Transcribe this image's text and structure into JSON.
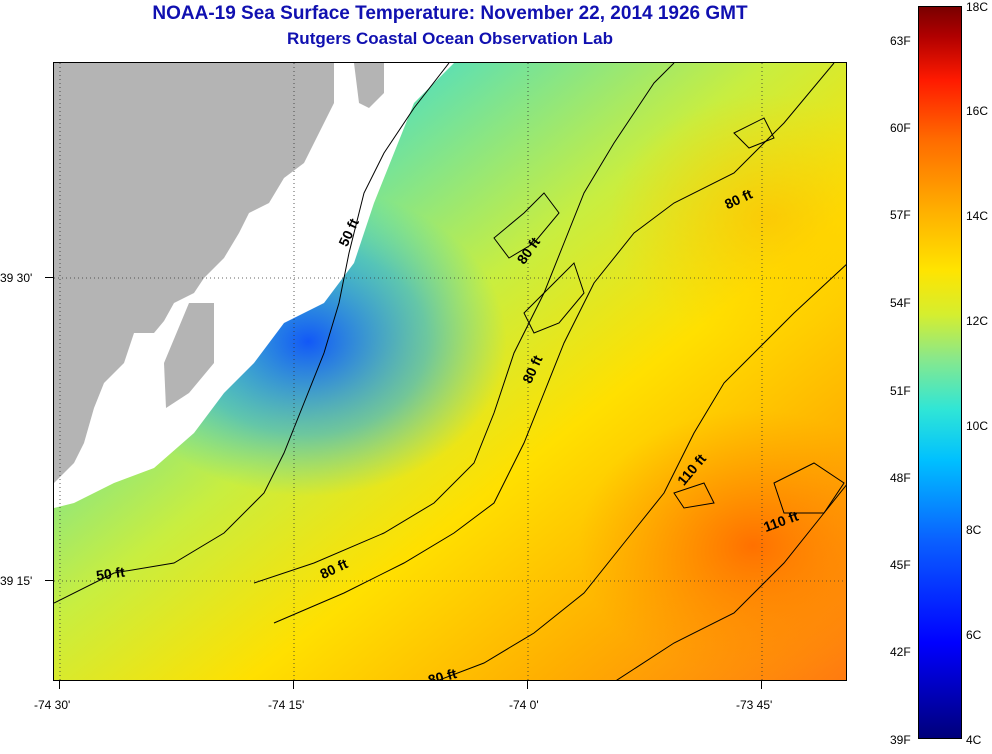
{
  "title": "NOAA-19 Sea Surface Temperature:  November 22, 2014 1926 GMT",
  "subtitle": "Rutgers Coastal Ocean Observation Lab",
  "map": {
    "lon_labels": [
      "-74 30'",
      "-74 15'",
      "-74 0'",
      "-73 45'"
    ],
    "lat_labels": [
      "39 30'",
      "39 15'"
    ],
    "contours": [
      {
        "text": "50 ft",
        "depth": 50
      },
      {
        "text": "50 ft",
        "depth": 50
      },
      {
        "text": "80 ft",
        "depth": 80
      },
      {
        "text": "80 ft",
        "depth": 80
      },
      {
        "text": "80 ft",
        "depth": 80
      },
      {
        "text": "80 ft",
        "depth": 80
      },
      {
        "text": "80 ft",
        "depth": 80
      },
      {
        "text": "110 ft",
        "depth": 110
      },
      {
        "text": "110 ft",
        "depth": 110
      }
    ],
    "colors": {
      "land": "#b4b4b4",
      "nodata": "#ffffff",
      "contour": "#000000"
    }
  },
  "colorbar": {
    "fahrenheit_labels": [
      "63F",
      "60F",
      "57F",
      "54F",
      "51F",
      "48F",
      "45F",
      "42F",
      "39F"
    ],
    "celsius_labels": [
      "18C",
      "16C",
      "14C",
      "12C",
      "10C",
      "8C",
      "6C",
      "4C"
    ],
    "range_c": [
      4,
      18
    ],
    "colors": [
      "#00007a",
      "#0000ff",
      "#00c0ff",
      "#8ae88a",
      "#ffe400",
      "#ff6a00",
      "#b00000"
    ]
  }
}
